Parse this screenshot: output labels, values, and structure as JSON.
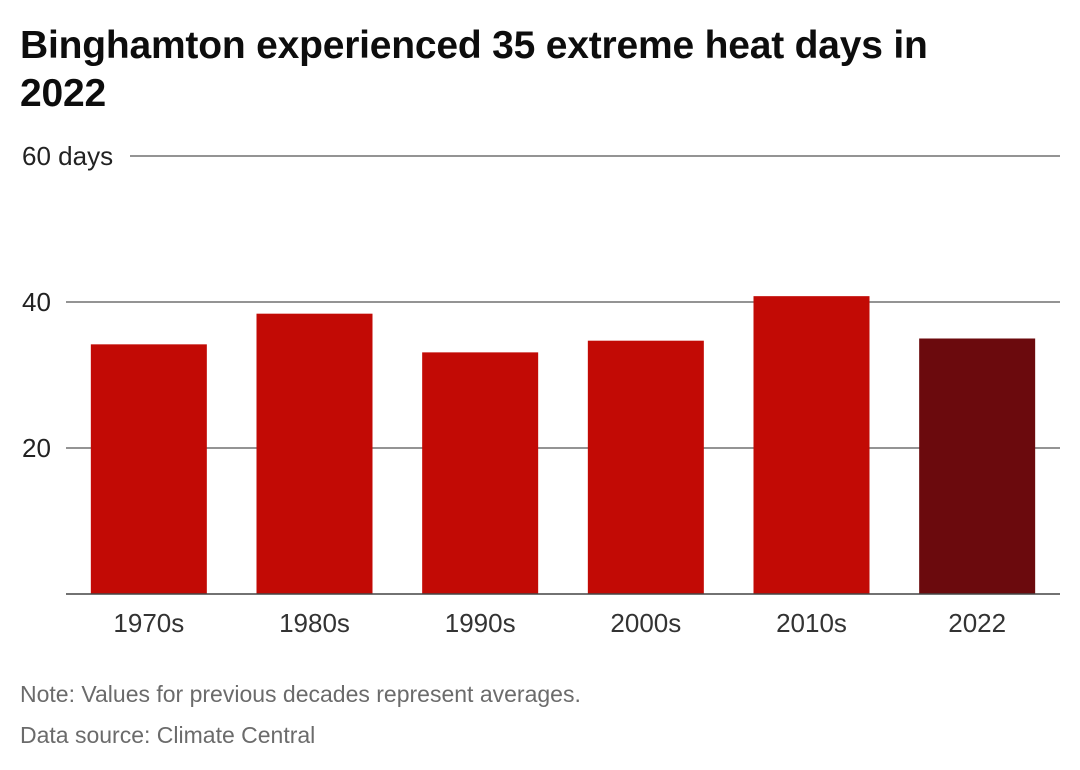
{
  "title": "Binghamton experienced 35 extreme heat days in 2022",
  "note": "Note: Values for previous decades represent averages.",
  "source": "Data source: Climate Central",
  "colors": {
    "decade_bar": "#c20a05",
    "highlight_bar": "#6b0a0d",
    "gridline": "#555555",
    "baseline": "#444444"
  },
  "chart_data": {
    "type": "bar",
    "categories": [
      "1970s",
      "1980s",
      "1990s",
      "2000s",
      "2010s",
      "2022"
    ],
    "values": [
      34.2,
      38.4,
      33.1,
      34.7,
      40.8,
      35
    ],
    "highlight_category": "2022",
    "ylim": [
      0,
      60
    ],
    "yticks": [
      20,
      40,
      60
    ],
    "ytick_labels": [
      "20",
      "40",
      "60 days"
    ],
    "grid": true,
    "xlabel": "",
    "ylabel": ""
  }
}
